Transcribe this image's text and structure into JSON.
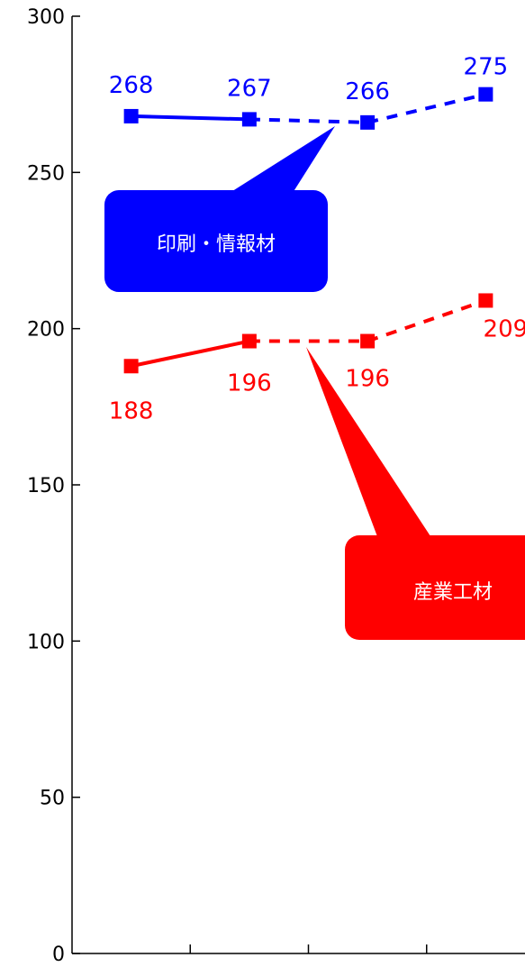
{
  "chart_data": {
    "type": "line",
    "x_positions": 4,
    "ylim": [
      0,
      300
    ],
    "yticks": [
      0,
      50,
      100,
      150,
      200,
      250,
      300
    ],
    "ytick_labels": [
      "0",
      "50",
      "100",
      "150",
      "200",
      "250",
      "300"
    ],
    "xlabel": "",
    "ylabel": "",
    "grid": false,
    "series": [
      {
        "name": "印刷・情報材",
        "color": "#0000ff",
        "values": [
          268,
          267,
          266,
          275
        ],
        "labels": [
          "268",
          "267",
          "266",
          "275"
        ],
        "segment_styles": [
          "solid",
          "dashed",
          "dashed"
        ]
      },
      {
        "name": "産業工材",
        "color": "#ff0000",
        "values": [
          188,
          196,
          196,
          209
        ],
        "labels": [
          "188",
          "196",
          "196",
          "209"
        ],
        "segment_styles": [
          "solid",
          "dashed",
          "dashed"
        ]
      }
    ]
  }
}
